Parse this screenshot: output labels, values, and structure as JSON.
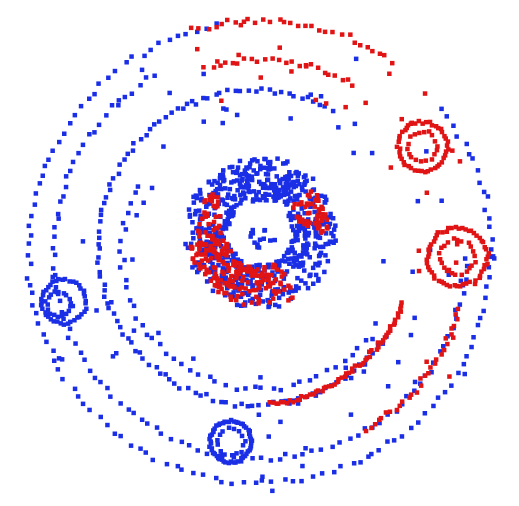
{
  "chart_data": {
    "type": "scatter",
    "title": "",
    "xlabel": "",
    "ylabel": "",
    "xlim": [
      -1.0,
      1.0
    ],
    "ylim": [
      -1.0,
      1.0
    ],
    "axes_visible": false,
    "grid": false,
    "legend": "none",
    "marker": "square",
    "colors": {
      "blue": "#1a2ee6",
      "red": "#e01414"
    },
    "series": [
      {
        "color": "blue",
        "shapes": [
          {
            "kind": "arc",
            "cx": 0.0,
            "cy": 0.0,
            "r": 0.94,
            "a0": 100,
            "a1": 400,
            "n": 120,
            "jitter": 0.018
          },
          {
            "kind": "arc",
            "cx": 0.0,
            "cy": 0.0,
            "r": 0.84,
            "a0": 120,
            "a1": 360,
            "n": 95,
            "jitter": 0.02
          },
          {
            "kind": "arc",
            "cx": -0.02,
            "cy": 0.02,
            "r": 0.64,
            "a0": 60,
            "a1": 330,
            "n": 110,
            "jitter": 0.015
          },
          {
            "kind": "arc",
            "cx": 0.0,
            "cy": 0.0,
            "r": 0.56,
            "a0": 150,
            "a1": 330,
            "n": 45,
            "jitter": 0.02
          },
          {
            "kind": "ring",
            "cx": 0.0,
            "cy": 0.08,
            "r": 0.22,
            "w": 0.09,
            "n": 650
          },
          {
            "kind": "disk",
            "cx": 0.0,
            "cy": 0.05,
            "r": 0.06,
            "n": 14
          },
          {
            "kind": "circle",
            "cx": -0.8,
            "cy": -0.2,
            "r": 0.09,
            "n": 40,
            "jitter": 0.01
          },
          {
            "kind": "circle",
            "cx": -0.82,
            "cy": -0.21,
            "r": 0.05,
            "n": 18,
            "jitter": 0.008
          },
          {
            "kind": "circle",
            "cx": -0.12,
            "cy": -0.77,
            "r": 0.085,
            "n": 55,
            "jitter": 0.008
          },
          {
            "kind": "circle",
            "cx": -0.12,
            "cy": -0.77,
            "r": 0.055,
            "n": 15,
            "jitter": 0.008
          },
          {
            "kind": "scatter",
            "n": 70,
            "rmin": 0.5,
            "rmax": 0.98
          }
        ]
      },
      {
        "color": "red",
        "shapes": [
          {
            "kind": "arc",
            "cx": 0.0,
            "cy": 0.0,
            "r": 0.94,
            "a0": 55,
            "a1": 108,
            "n": 30,
            "jitter": 0.02
          },
          {
            "kind": "arc",
            "cx": 0.0,
            "cy": 0.0,
            "r": 0.78,
            "a0": 60,
            "a1": 108,
            "n": 24,
            "jitter": 0.02
          },
          {
            "kind": "arc",
            "cx": 0.0,
            "cy": 0.0,
            "r": 0.84,
            "a0": 300,
            "a1": 345,
            "n": 30,
            "jitter": 0.02
          },
          {
            "kind": "arc",
            "cx": -0.02,
            "cy": 0.02,
            "r": 0.64,
            "a0": 275,
            "a1": 340,
            "n": 60,
            "jitter": 0.015
          },
          {
            "kind": "arc",
            "cx": 0.0,
            "cy": 0.08,
            "r": 0.22,
            "a0": 190,
            "a1": 300,
            "w": 0.08,
            "n": 180
          },
          {
            "kind": "arc",
            "cx": 0.0,
            "cy": 0.08,
            "r": 0.21,
            "a0": 140,
            "a1": 190,
            "w": 0.05,
            "n": 40
          },
          {
            "kind": "arc",
            "cx": 0.0,
            "cy": 0.08,
            "r": 0.22,
            "a0": 0,
            "a1": 40,
            "w": 0.06,
            "n": 55
          },
          {
            "kind": "circle",
            "cx": 0.66,
            "cy": 0.43,
            "r": 0.1,
            "n": 45,
            "jitter": 0.012
          },
          {
            "kind": "circle",
            "cx": 0.66,
            "cy": 0.43,
            "r": 0.06,
            "n": 18,
            "jitter": 0.01
          },
          {
            "kind": "circle",
            "cx": 0.8,
            "cy": -0.02,
            "r": 0.12,
            "n": 55,
            "jitter": 0.012
          },
          {
            "kind": "circle",
            "cx": 0.8,
            "cy": -0.02,
            "r": 0.07,
            "n": 22,
            "jitter": 0.01
          },
          {
            "kind": "scatter",
            "n": 30,
            "rmin": 0.6,
            "rmax": 0.95,
            "a0": -40,
            "a1": 110
          }
        ]
      }
    ]
  }
}
